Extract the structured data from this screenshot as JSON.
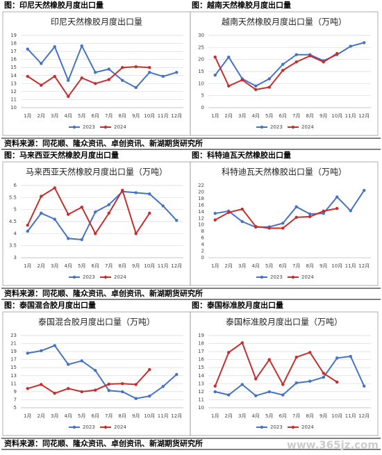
{
  "chart_data": [
    {
      "type": "line",
      "caption": "图：印尼天然橡胶月度出口量",
      "title": "印尼天然橡胶月度出口量",
      "categories": [
        "1月",
        "2月",
        "3月",
        "4月",
        "5月",
        "6月",
        "7月",
        "8月",
        "9月",
        "10月",
        "11月",
        "12月"
      ],
      "ylim": [
        10,
        19
      ],
      "yticks": [
        10,
        11,
        12,
        13,
        14,
        15,
        16,
        17,
        18,
        19
      ],
      "grid": true,
      "series": [
        {
          "name": "2023",
          "color": "#4472c4",
          "values": [
            17.3,
            15.5,
            17.6,
            13.4,
            17.7,
            14.4,
            14.8,
            13.4,
            12.5,
            14.4,
            13.9,
            14.4
          ]
        },
        {
          "name": "2024",
          "color": "#c62d2d",
          "values": [
            13.9,
            12.8,
            13.9,
            11.4,
            13.7,
            13.0,
            13.5,
            15.0,
            15.1,
            15.0,
            null,
            null
          ]
        }
      ]
    },
    {
      "type": "line",
      "caption": "图：越南天然橡胶月度出口量",
      "title": "越南天然橡胶月度出口量（万吨）",
      "categories": [
        "1月",
        "2月",
        "3月",
        "4月",
        "5月",
        "6月",
        "7月",
        "8月",
        "9月",
        "10月",
        "11月",
        "12月"
      ],
      "ylim": [
        0,
        30
      ],
      "yticks": [
        0,
        5,
        10,
        15,
        20,
        25,
        30
      ],
      "grid": true,
      "series": [
        {
          "name": "2023",
          "color": "#4472c4",
          "values": [
            13.5,
            21,
            12,
            9,
            12,
            18,
            22,
            22,
            19.5,
            22,
            25.5,
            27
          ]
        },
        {
          "name": "2024",
          "color": "#c62d2d",
          "values": [
            21,
            9,
            11.5,
            7.5,
            8.5,
            15.5,
            19,
            21.5,
            19,
            22.5,
            null,
            null
          ]
        }
      ]
    },
    {
      "type": "line",
      "caption": "图：马来西亚天然橡胶月度出口量",
      "title": "马来西亚天然橡胶月度出口量（万吨）",
      "categories": [
        "1月",
        "2月",
        "3月",
        "4月",
        "5月",
        "6月",
        "7月",
        "8月",
        "9月",
        "10月",
        "11月",
        "12月"
      ],
      "ylim": [
        3,
        6
      ],
      "yticks": [
        3,
        3.5,
        4,
        4.5,
        5,
        5.5,
        6
      ],
      "grid": true,
      "series": [
        {
          "name": "2023",
          "color": "#4472c4",
          "values": [
            4.1,
            4.85,
            4.6,
            3.8,
            3.75,
            4.9,
            5.2,
            5.75,
            5.7,
            5.65,
            5.15,
            4.55
          ]
        },
        {
          "name": "2024",
          "color": "#c62d2d",
          "values": [
            4.35,
            5.55,
            5.9,
            4.8,
            5.1,
            4.0,
            4.85,
            5.8,
            4.0,
            4.85,
            null,
            null
          ]
        }
      ]
    },
    {
      "type": "line",
      "caption": "图：科特迪瓦天然橡胶出口量",
      "title": "科特迪瓦天然橡胶出口量（万吨）",
      "categories": [
        "1月",
        "2月",
        "3月",
        "4月",
        "5月",
        "6月",
        "7月",
        "8月",
        "9月",
        "10月",
        "11月",
        "12月"
      ],
      "ylim": [
        0,
        22
      ],
      "yticks": [
        0,
        2,
        4,
        6,
        8,
        10,
        12,
        14,
        16,
        18,
        20,
        22
      ],
      "grid": false,
      "series": [
        {
          "name": "2023",
          "color": "#4472c4",
          "values": [
            13.5,
            14.2,
            11,
            9.3,
            9.4,
            10.5,
            15.5,
            13.3,
            13.5,
            18.5,
            14.3,
            20.5
          ]
        },
        {
          "name": "2024",
          "color": "#c62d2d",
          "values": [
            11.5,
            13.8,
            14.8,
            9.5,
            9,
            9,
            12.3,
            12.5,
            14.2,
            15,
            null,
            null
          ]
        }
      ]
    },
    {
      "type": "line",
      "caption": "图：泰国混合胶月度出口量",
      "title": "泰国混合胶月度出口量（万吨）",
      "categories": [
        "1月",
        "2月",
        "3月",
        "4月",
        "5月",
        "6月",
        "7月",
        "8月",
        "9月",
        "10月",
        "11月",
        "12月"
      ],
      "ylim": [
        5,
        23
      ],
      "yticks": [
        5,
        7,
        9,
        11,
        13,
        15,
        17,
        19,
        21,
        23
      ],
      "grid": true,
      "series": [
        {
          "name": "2023",
          "color": "#4472c4",
          "values": [
            18.6,
            19.2,
            20.5,
            15.8,
            16.7,
            14.3,
            9.3,
            9.0,
            7.3,
            7.9,
            10.3,
            13.3
          ]
        },
        {
          "name": "2024",
          "color": "#c62d2d",
          "values": [
            9.8,
            10.8,
            8.6,
            9.8,
            9.0,
            9.4,
            10.9,
            11.0,
            10.8,
            14.5,
            null,
            null
          ]
        }
      ]
    },
    {
      "type": "line",
      "caption": "图：泰国标准胶月度出口量",
      "title": "泰国标准胶月度出口量（万吨）",
      "categories": [
        "1月",
        "2月",
        "3月",
        "4月",
        "5月",
        "6月",
        "7月",
        "8月",
        "9月",
        "10月",
        "11月",
        "12月"
      ],
      "ylim": [
        10,
        19
      ],
      "yticks": [
        10,
        11,
        12,
        13,
        14,
        15,
        16,
        17,
        18,
        19
      ],
      "grid": true,
      "series": [
        {
          "name": "2023",
          "color": "#4472c4",
          "values": [
            12.0,
            11.6,
            12.9,
            11.5,
            12.0,
            11.6,
            13.1,
            13.3,
            13.8,
            16.2,
            16.4,
            12.7
          ]
        },
        {
          "name": "2024",
          "color": "#c62d2d",
          "values": [
            12.7,
            16.9,
            18.1,
            13.6,
            16.0,
            12.9,
            16.3,
            16.9,
            14.3,
            13.2,
            null,
            null
          ]
        }
      ]
    }
  ],
  "sources": [
    "资料来源：同花顺、隆众资讯、卓创资讯、新湖期货研究所",
    "资料来源：同花顺、隆众资讯、卓创资讯、新湖期货研究所",
    "资料来源：同花顺、隆众资讯、卓创资讯、新湖期货研究所"
  ],
  "watermark": "www.365jz.com"
}
